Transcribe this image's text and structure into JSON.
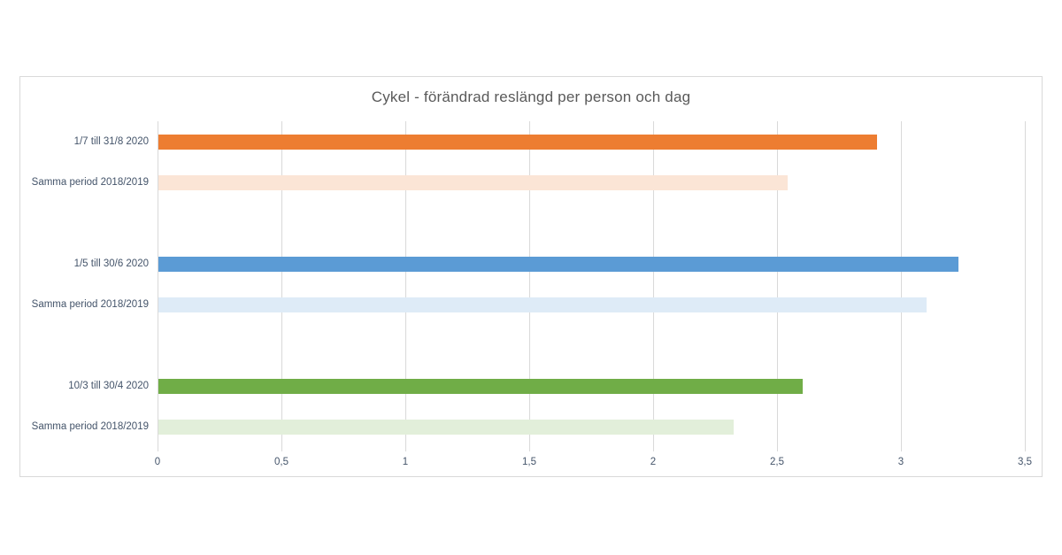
{
  "chart_data": {
    "type": "bar",
    "orientation": "horizontal",
    "title": "Cykel - förändrad reslängd per person och dag",
    "grid": true,
    "legend": false,
    "xlim": [
      0,
      3.5
    ],
    "x_ticks": [
      {
        "label": "0",
        "value": 0
      },
      {
        "label": "0,5",
        "value": 0.5
      },
      {
        "label": "1",
        "value": 1
      },
      {
        "label": "1,5",
        "value": 1.5
      },
      {
        "label": "2",
        "value": 2
      },
      {
        "label": "2,5",
        "value": 2.5
      },
      {
        "label": "3",
        "value": 3
      },
      {
        "label": "3,5",
        "value": 3.5
      }
    ],
    "rows": [
      {
        "category": "1/7 till 31/8 2020",
        "value": 2.9,
        "color": "#ED7D31",
        "group": "juli-augusti"
      },
      {
        "category": "Samma period 2018/2019",
        "value": 2.54,
        "color": "#FBE5D6",
        "group": "juli-augusti"
      },
      {
        "category": "",
        "value": null,
        "color": null,
        "group": "spacer"
      },
      {
        "category": "1/5 till 30/6 2020",
        "value": 3.23,
        "color": "#5B9BD5",
        "group": "maj-juni"
      },
      {
        "category": "Samma period 2018/2019",
        "value": 3.1,
        "color": "#DEEBF7",
        "group": "maj-juni"
      },
      {
        "category": "",
        "value": null,
        "color": null,
        "group": "spacer"
      },
      {
        "category": "10/3 till 30/4 2020",
        "value": 2.6,
        "color": "#70AD47",
        "group": "mars-april"
      },
      {
        "category": "Samma period 2018/2019",
        "value": 2.32,
        "color": "#E2EFDA",
        "group": "mars-april"
      }
    ],
    "colors": {
      "gridline": "#D9D9D9",
      "frame_border": "#D9D9D9",
      "title_text": "#595959",
      "axis_text": "#44546A",
      "bar_orange": "#ED7D31",
      "bar_orange_light": "#FBE5D6",
      "bar_blue": "#5B9BD5",
      "bar_blue_light": "#DEEBF7",
      "bar_green": "#70AD47",
      "bar_green_light": "#E2EFDA"
    }
  }
}
